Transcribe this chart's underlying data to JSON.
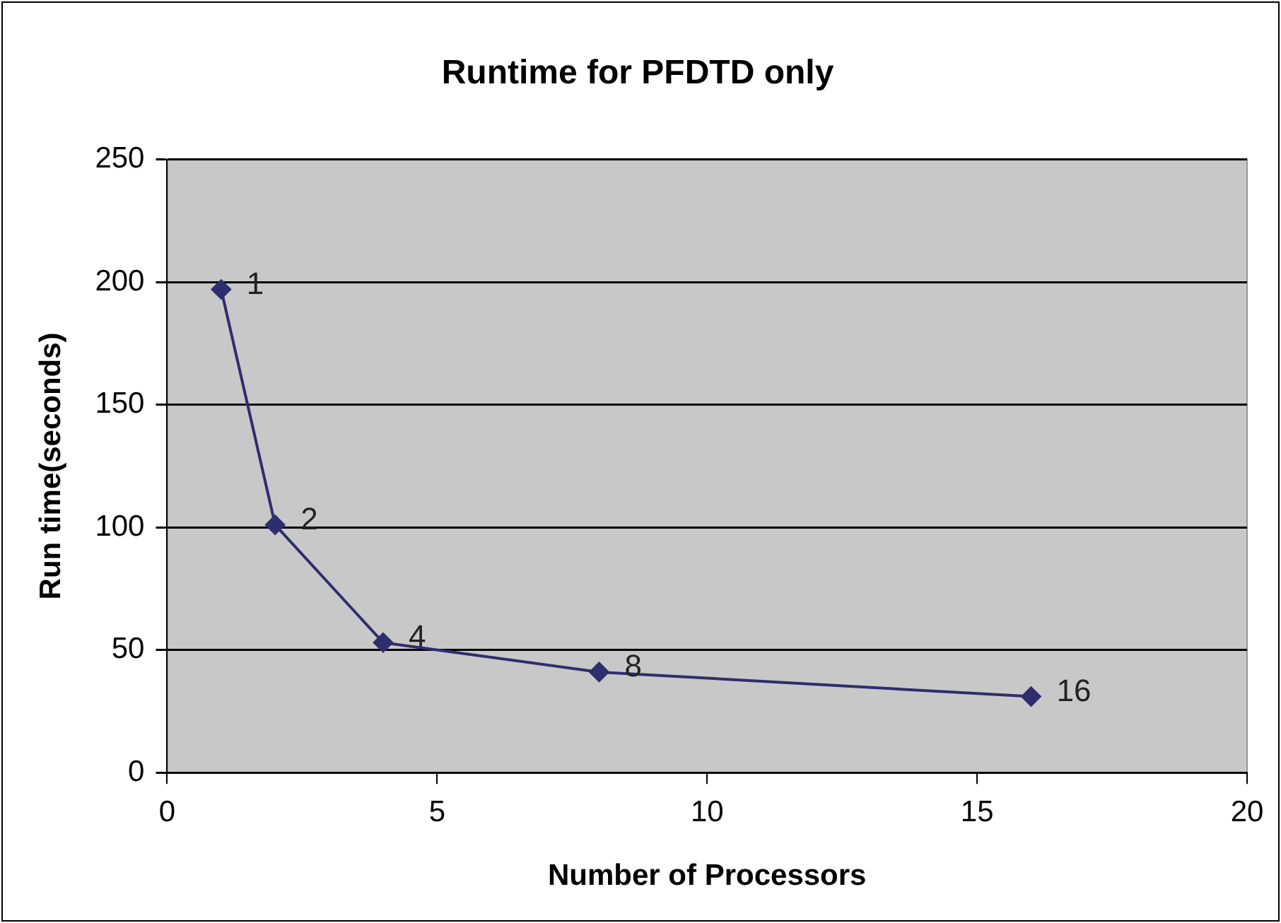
{
  "chart_data": {
    "type": "line",
    "title": "Runtime for PFDTD only",
    "xlabel": "Number of Processors",
    "ylabel": "Run time(seconds)",
    "x": [
      1,
      2,
      4,
      8,
      16
    ],
    "series": [
      {
        "color": "#2e2e6e",
        "values": [
          197,
          101,
          53,
          41,
          31
        ]
      }
    ],
    "annotations": [
      {
        "text": "1",
        "x": 1,
        "y": 197
      },
      {
        "text": "2",
        "x": 2,
        "y": 101
      },
      {
        "text": "4",
        "x": 4,
        "y": 53
      },
      {
        "text": "8",
        "x": 8,
        "y": 41
      },
      {
        "text": "16",
        "x": 16,
        "y": 31
      }
    ],
    "xlim": [
      0,
      20
    ],
    "xticks": [
      0,
      5,
      10,
      15,
      20
    ],
    "ylim": [
      0,
      250
    ],
    "yticks": [
      0,
      50,
      100,
      150,
      200,
      250
    ],
    "grid": "y",
    "legend": false,
    "marker": "diamond",
    "line_style": "solid"
  }
}
